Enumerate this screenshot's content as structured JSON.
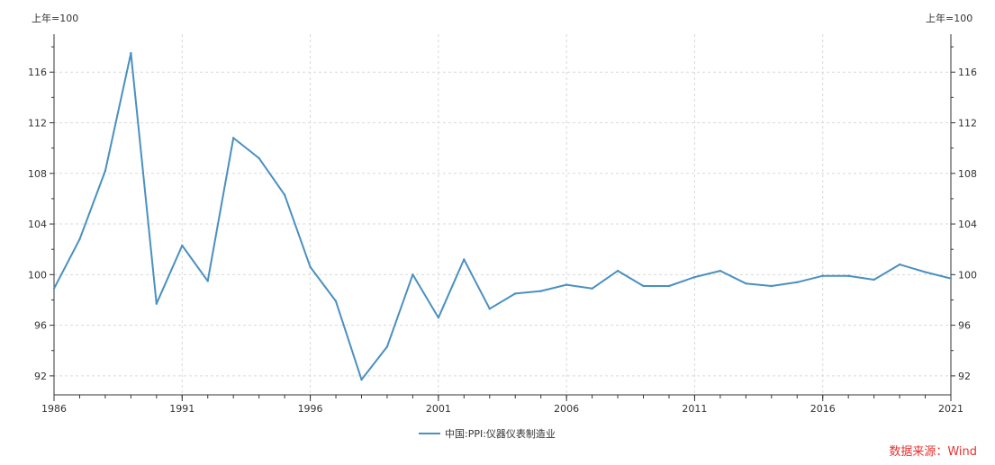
{
  "chart_data": {
    "type": "line",
    "unit_left": "上年=100",
    "unit_right": "上年=100",
    "x": [
      1986,
      1987,
      1988,
      1989,
      1990,
      1991,
      1992,
      1993,
      1994,
      1995,
      1996,
      1997,
      1998,
      1999,
      2000,
      2001,
      2002,
      2003,
      2004,
      2005,
      2006,
      2007,
      2008,
      2009,
      2010,
      2011,
      2012,
      2013,
      2014,
      2015,
      2016,
      2017,
      2018,
      2019,
      2020,
      2021
    ],
    "x_ticks": [
      "1986",
      "1991",
      "1996",
      "2001",
      "2006",
      "2011",
      "2016",
      "2021"
    ],
    "y_ticks": [
      "92",
      "96",
      "100",
      "104",
      "108",
      "112",
      "116"
    ],
    "ylim": [
      90.5,
      119
    ],
    "xlim": [
      1986,
      2021
    ],
    "grid": true,
    "legend_position": "bottom-center",
    "series": [
      {
        "name": "中国:PPI:仪器仪表制造业",
        "color": "#4a90c0",
        "values": [
          98.9,
          102.8,
          108.2,
          117.5,
          97.7,
          102.3,
          99.5,
          110.8,
          109.2,
          106.3,
          100.6,
          97.9,
          91.7,
          94.3,
          100.0,
          96.6,
          101.2,
          97.3,
          98.5,
          98.7,
          99.2,
          98.9,
          100.3,
          99.1,
          99.1,
          99.8,
          100.3,
          99.3,
          99.1,
          99.4,
          99.9,
          99.9,
          99.6,
          100.8,
          100.2,
          99.7
        ]
      }
    ]
  },
  "source_text": "数据来源：Wind"
}
